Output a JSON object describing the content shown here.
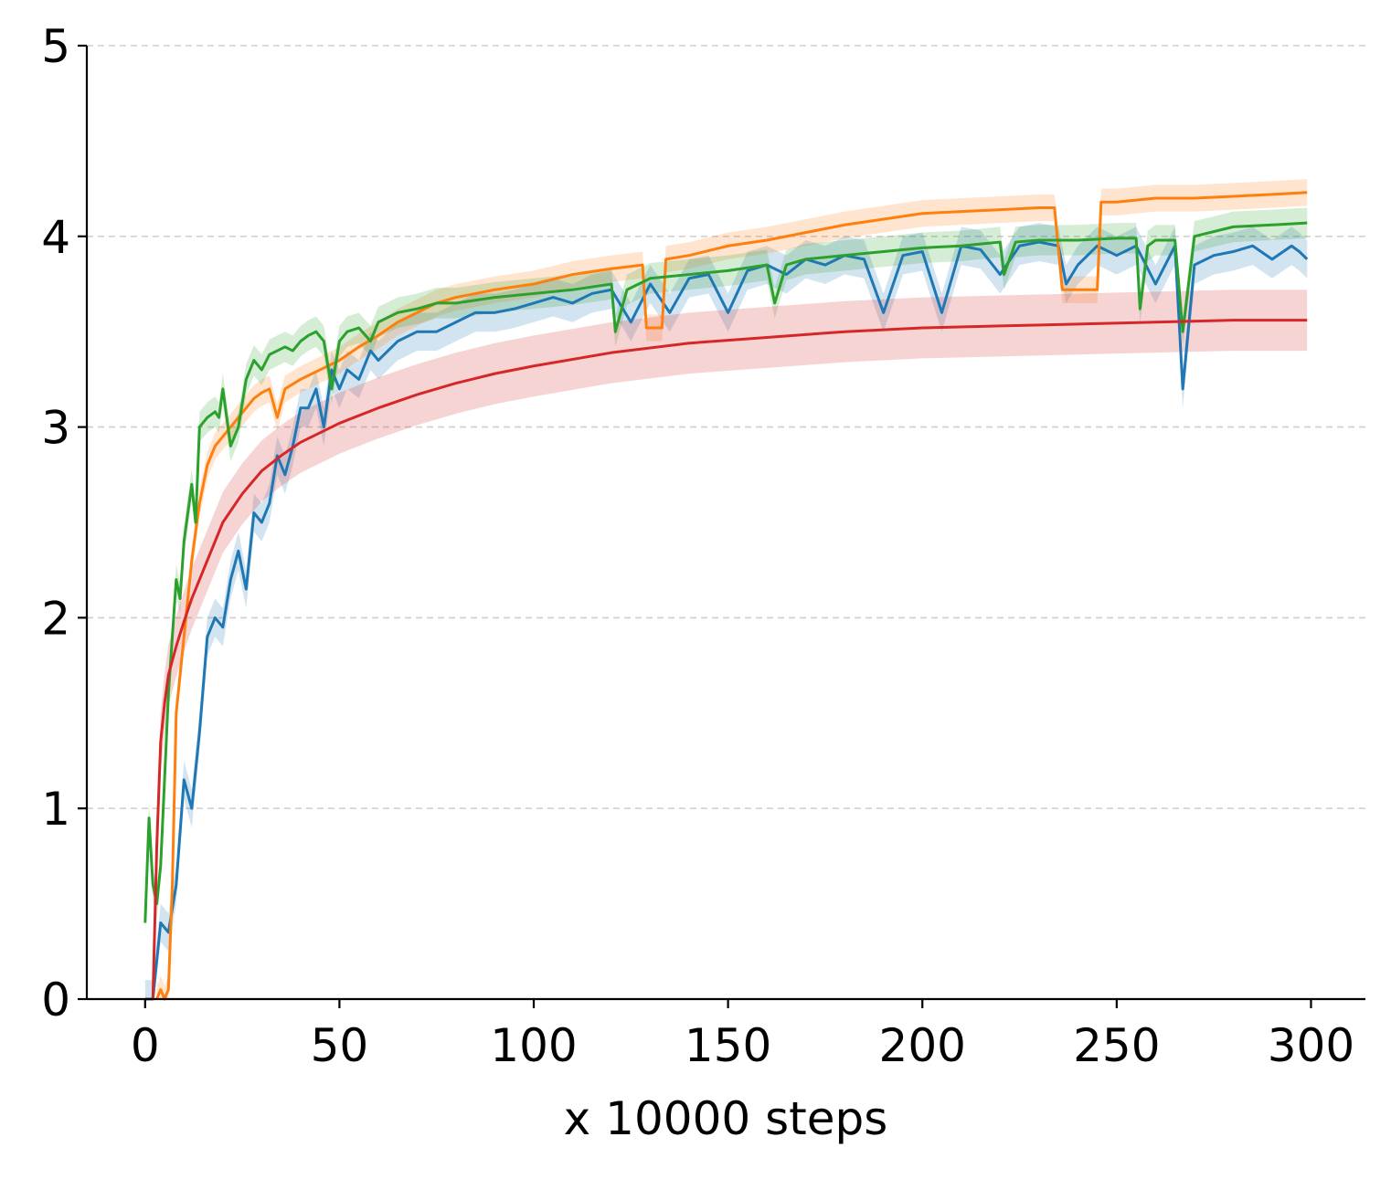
{
  "chart_data": {
    "type": "line",
    "title": "",
    "xlabel": "x 10000 steps",
    "ylabel": "",
    "xlim": [
      -15,
      314
    ],
    "ylim": [
      0,
      5
    ],
    "xticks": [
      "0",
      "50",
      "100",
      "150",
      "200",
      "250",
      "300"
    ],
    "yticks": [
      "0",
      "1",
      "2",
      "3",
      "4",
      "5"
    ],
    "grid": "horizontal dashed",
    "legend": "none",
    "series": [
      {
        "color": "#1f77b4",
        "x": [
          0,
          2,
          4,
          6,
          8,
          10,
          12,
          14,
          16,
          18,
          20,
          22,
          24,
          26,
          28,
          30,
          32,
          34,
          36,
          38,
          40,
          42,
          44,
          46,
          48,
          50,
          52,
          55,
          58,
          60,
          65,
          70,
          75,
          80,
          85,
          90,
          95,
          100,
          105,
          110,
          115,
          120,
          125,
          130,
          135,
          140,
          145,
          150,
          155,
          160,
          165,
          170,
          175,
          180,
          185,
          190,
          195,
          200,
          205,
          210,
          215,
          220,
          225,
          230,
          235,
          237,
          240,
          245,
          250,
          255,
          260,
          265,
          267,
          270,
          275,
          280,
          285,
          290,
          295,
          297,
          299
        ],
        "y": [
          0.0,
          0.0,
          0.4,
          0.35,
          0.6,
          1.15,
          1.0,
          1.4,
          1.9,
          2.0,
          1.95,
          2.2,
          2.35,
          2.15,
          2.55,
          2.5,
          2.6,
          2.85,
          2.75,
          2.9,
          3.1,
          3.1,
          3.2,
          3.0,
          3.3,
          3.2,
          3.3,
          3.25,
          3.4,
          3.35,
          3.45,
          3.5,
          3.5,
          3.55,
          3.6,
          3.6,
          3.62,
          3.65,
          3.68,
          3.65,
          3.7,
          3.72,
          3.55,
          3.75,
          3.6,
          3.78,
          3.8,
          3.6,
          3.82,
          3.85,
          3.8,
          3.88,
          3.85,
          3.9,
          3.88,
          3.6,
          3.9,
          3.92,
          3.6,
          3.95,
          3.93,
          3.8,
          3.95,
          3.97,
          3.95,
          3.75,
          3.85,
          3.95,
          3.9,
          3.95,
          3.75,
          3.95,
          3.2,
          3.85,
          3.9,
          3.92,
          3.95,
          3.88,
          3.95,
          3.92,
          3.88
        ],
        "band": 0.1
      },
      {
        "color": "#ff7f0e",
        "x": [
          3,
          4,
          5,
          6,
          7,
          8,
          10,
          12,
          14,
          16,
          18,
          20,
          22,
          24,
          26,
          28,
          30,
          32,
          34,
          36,
          40,
          45,
          50,
          55,
          60,
          65,
          70,
          75,
          80,
          90,
          100,
          110,
          120,
          128,
          129,
          133,
          134,
          140,
          150,
          160,
          170,
          180,
          190,
          200,
          210,
          220,
          230,
          234,
          236,
          245,
          246,
          250,
          260,
          270,
          280,
          290,
          299
        ],
        "y": [
          0.0,
          0.05,
          0.0,
          0.05,
          0.6,
          1.5,
          1.9,
          2.3,
          2.6,
          2.8,
          2.9,
          2.95,
          3.0,
          3.05,
          3.1,
          3.15,
          3.18,
          3.2,
          3.05,
          3.2,
          3.25,
          3.3,
          3.35,
          3.42,
          3.48,
          3.55,
          3.6,
          3.65,
          3.68,
          3.72,
          3.75,
          3.8,
          3.83,
          3.85,
          3.52,
          3.52,
          3.88,
          3.9,
          3.95,
          3.98,
          4.02,
          4.06,
          4.09,
          4.12,
          4.13,
          4.14,
          4.15,
          4.15,
          3.72,
          3.72,
          4.18,
          4.18,
          4.2,
          4.2,
          4.21,
          4.22,
          4.23
        ],
        "band": 0.07
      },
      {
        "color": "#2ca02c",
        "x": [
          0,
          1,
          2,
          3,
          4,
          6,
          8,
          9,
          10,
          12,
          13,
          14,
          16,
          18,
          19,
          20,
          22,
          24,
          26,
          28,
          30,
          32,
          34,
          36,
          38,
          40,
          42,
          44,
          46,
          48,
          50,
          52,
          55,
          58,
          60,
          65,
          70,
          75,
          80,
          90,
          100,
          110,
          120,
          121,
          124,
          130,
          140,
          150,
          160,
          162,
          165,
          170,
          180,
          190,
          200,
          210,
          215,
          220,
          221,
          224,
          230,
          240,
          250,
          255,
          256,
          258,
          260,
          265,
          267,
          270,
          280,
          290,
          299
        ],
        "y": [
          0.4,
          0.95,
          0.6,
          0.5,
          0.7,
          1.6,
          2.2,
          2.1,
          2.4,
          2.7,
          2.5,
          3.0,
          3.05,
          3.08,
          3.05,
          3.2,
          2.9,
          3.0,
          3.25,
          3.35,
          3.3,
          3.38,
          3.4,
          3.42,
          3.4,
          3.45,
          3.48,
          3.5,
          3.45,
          3.2,
          3.45,
          3.5,
          3.52,
          3.45,
          3.55,
          3.6,
          3.62,
          3.65,
          3.65,
          3.68,
          3.7,
          3.72,
          3.75,
          3.5,
          3.72,
          3.78,
          3.8,
          3.82,
          3.85,
          3.65,
          3.85,
          3.88,
          3.9,
          3.92,
          3.94,
          3.95,
          3.96,
          3.97,
          3.8,
          3.97,
          3.98,
          3.98,
          3.99,
          3.99,
          3.62,
          3.95,
          3.98,
          3.98,
          3.5,
          4.0,
          4.05,
          4.06,
          4.07
        ],
        "band": 0.08
      },
      {
        "color": "#d62728",
        "x": [
          2,
          3,
          4,
          5,
          6,
          8,
          10,
          12,
          15,
          20,
          25,
          30,
          35,
          40,
          50,
          60,
          70,
          80,
          90,
          100,
          120,
          140,
          160,
          180,
          200,
          220,
          240,
          260,
          280,
          299
        ],
        "y": [
          0.0,
          0.8,
          1.35,
          1.55,
          1.7,
          1.85,
          1.98,
          2.1,
          2.25,
          2.5,
          2.65,
          2.77,
          2.85,
          2.92,
          3.02,
          3.1,
          3.17,
          3.23,
          3.28,
          3.32,
          3.39,
          3.44,
          3.47,
          3.5,
          3.52,
          3.53,
          3.54,
          3.55,
          3.56,
          3.56
        ],
        "band": 0.16
      }
    ]
  }
}
